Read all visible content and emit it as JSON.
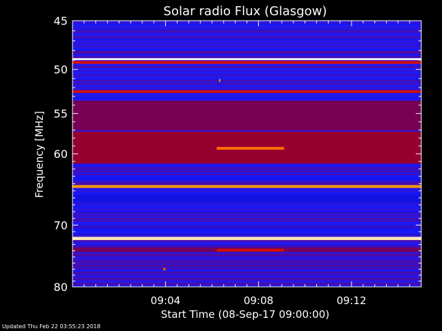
{
  "chart_data": {
    "type": "heatmap",
    "title": "Solar radio Flux (Glasgow)",
    "xlabel": "Start Time (08-Sep-17 09:00:00)",
    "ylabel": "Frequency [MHz]",
    "x_unit": "minutes after 09:00:00",
    "xlim": [
      0,
      15
    ],
    "ylim": [
      45,
      80
    ],
    "y_inverted": true,
    "y_scale": "log",
    "xticks": [
      {
        "value": 4,
        "label": "09:04"
      },
      {
        "value": 8,
        "label": "09:08"
      },
      {
        "value": 12,
        "label": "09:12"
      }
    ],
    "yticks": [
      {
        "value": 45,
        "label": "45"
      },
      {
        "value": 50,
        "label": "50"
      },
      {
        "value": 55,
        "label": "55"
      },
      {
        "value": 60,
        "label": "60"
      },
      {
        "value": 70,
        "label": "70"
      },
      {
        "value": 80,
        "label": "80"
      }
    ],
    "grid": false,
    "colormap": [
      "#0000a0",
      "#1a1aff",
      "#7a0050",
      "#c00000",
      "#ff3000",
      "#ffb000",
      "#ffffff"
    ],
    "background_intensity": 0.2,
    "bands": [
      {
        "freq_min": 48.8,
        "freq_max": 49.0,
        "intensity": 1.0
      },
      {
        "freq_min": 49.1,
        "freq_max": 49.4,
        "intensity": 0.55
      },
      {
        "freq_min": 52.3,
        "freq_max": 52.6,
        "intensity": 0.55
      },
      {
        "freq_min": 53.5,
        "freq_max": 57.0,
        "intensity": 0.33
      },
      {
        "freq_min": 57.2,
        "freq_max": 61.3,
        "intensity": 0.4
      },
      {
        "freq_min": 64.2,
        "freq_max": 64.6,
        "intensity": 0.8
      },
      {
        "freq_min": 65.5,
        "freq_max": 66.5,
        "intensity": 0.12
      },
      {
        "freq_min": 71.8,
        "freq_max": 72.3,
        "intensity": 0.95
      },
      {
        "freq_min": 73.5,
        "freq_max": 74.2,
        "intensity": 0.32
      }
    ],
    "events": [
      {
        "t_start": 6.2,
        "t_end": 9.1,
        "freq": 59.3,
        "intensity": 0.75
      },
      {
        "t_start": 6.2,
        "t_end": 9.1,
        "freq": 73.9,
        "intensity": 0.55
      },
      {
        "t_start": 6.3,
        "t_end": 6.35,
        "freq": 51.2,
        "intensity": 0.8
      },
      {
        "t_start": 3.9,
        "t_end": 4.0,
        "freq": 77.0,
        "intensity": 0.7
      }
    ]
  },
  "footer": {
    "updated": "Updated Thu Feb 22 03:55:23 2018"
  }
}
